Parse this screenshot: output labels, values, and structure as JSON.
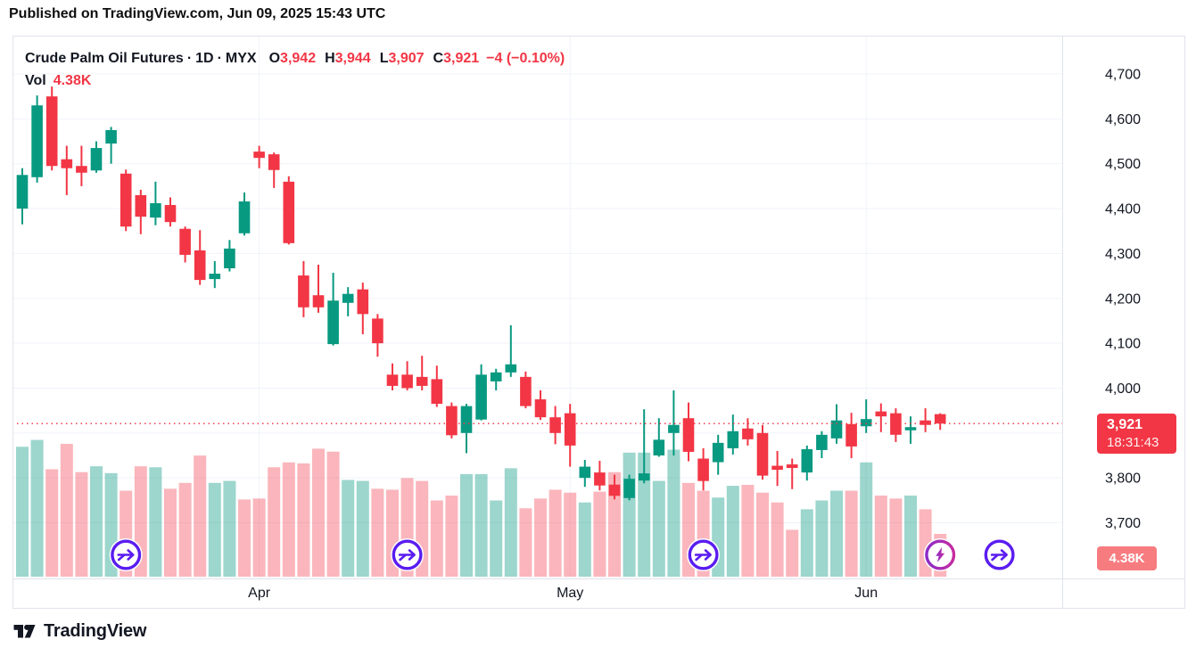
{
  "published_bar": "Published on TradingView.com, Jun 09, 2025 15:43 UTC",
  "legend": {
    "symbol": "Crude Palm Oil Futures",
    "separator": "·",
    "timeframe": "1D",
    "exchange": "MYX",
    "ohlc": {
      "o_label": "O",
      "o": "3,942",
      "h_label": "H",
      "h": "3,944",
      "l_label": "L",
      "l": "3,907",
      "c_label": "C",
      "c": "3,921",
      "change": "−4 (−0.10%)"
    },
    "vol_label": "Vol",
    "vol_value": "4.38K"
  },
  "price_axis": {
    "gridline_values": [
      4700,
      4600,
      4500,
      4400,
      4300,
      4200,
      4100,
      4000,
      3900,
      3800,
      3700
    ],
    "ticks": [
      {
        "value": 4700,
        "label": "4,700"
      },
      {
        "value": 4600,
        "label": "4,600"
      },
      {
        "value": 4500,
        "label": "4,500"
      },
      {
        "value": 4400,
        "label": "4,400"
      },
      {
        "value": 4300,
        "label": "4,300"
      },
      {
        "value": 4200,
        "label": "4,200"
      },
      {
        "value": 4100,
        "label": "4,100"
      },
      {
        "value": 4000,
        "label": "4,000"
      },
      {
        "value": 3800,
        "label": "3,800"
      },
      {
        "value": 3700,
        "label": "3,700"
      }
    ]
  },
  "time_axis": {
    "months": [
      {
        "label": "Apr",
        "index": 16
      },
      {
        "label": "May",
        "index": 37
      },
      {
        "label": "Jun",
        "index": 57
      }
    ]
  },
  "price_badge": {
    "price": "3,921",
    "countdown": "18:31:43",
    "value": 3921
  },
  "vol_badge": {
    "label": "4.38K"
  },
  "markers": [
    {
      "icon": "jump-arrow",
      "index": 7
    },
    {
      "icon": "jump-arrow",
      "index": 26
    },
    {
      "icon": "jump-arrow",
      "index": 46
    },
    {
      "icon": "flash",
      "index": 62
    },
    {
      "icon": "jump-arrow",
      "index": 66
    }
  ],
  "footer": {
    "brand": "TradingView"
  },
  "colors": {
    "up": "#089981",
    "down": "#F23645",
    "vol_up": "rgba(8,153,129,0.40)",
    "vol_down": "rgba(242,54,69,0.36)",
    "grid": "#F0F3FA",
    "frame": "#E0E3EB",
    "text": "#131722",
    "accent_red": "#F23645",
    "marker_purple": "#5A1CF0",
    "flash_purple": "#8B2BC9",
    "flash_magenta": "#C62CA0"
  },
  "chart_data": {
    "type": "candlestick",
    "title": "Crude Palm Oil Futures · 1D · MYX",
    "current_price": 3921,
    "ylim": [
      3580,
      4780
    ],
    "x_months": [
      "Apr",
      "May",
      "Jun"
    ],
    "volume_unit": "K",
    "columns": [
      "open",
      "high",
      "low",
      "close",
      "volume_k",
      "volume_up_color"
    ],
    "candles": [
      [
        4400,
        4490,
        4365,
        4475,
        13.3,
        1
      ],
      [
        4470,
        4652,
        4458,
        4630,
        14,
        1
      ],
      [
        4650,
        4672,
        4485,
        4495,
        11,
        0
      ],
      [
        4510,
        4540,
        4430,
        4490,
        13.6,
        0
      ],
      [
        4495,
        4540,
        4450,
        4480,
        10.7,
        0
      ],
      [
        4485,
        4550,
        4480,
        4535,
        11.3,
        1
      ],
      [
        4545,
        4582,
        4500,
        4575,
        10.6,
        1
      ],
      [
        4478,
        4487,
        4350,
        4360,
        8.8,
        0
      ],
      [
        4430,
        4442,
        4343,
        4382,
        11.3,
        0
      ],
      [
        4380,
        4460,
        4363,
        4412,
        11.2,
        1
      ],
      [
        4408,
        4425,
        4360,
        4370,
        9,
        0
      ],
      [
        4355,
        4360,
        4280,
        4297,
        9.6,
        0
      ],
      [
        4307,
        4352,
        4230,
        4241,
        12.4,
        0
      ],
      [
        4243,
        4283,
        4223,
        4255,
        9.6,
        1
      ],
      [
        4267,
        4330,
        4260,
        4311,
        9.8,
        1
      ],
      [
        4345,
        4436,
        4340,
        4416,
        7.9,
        0
      ],
      [
        4527,
        4540,
        4490,
        4513,
        8,
        0
      ],
      [
        4521,
        4525,
        4446,
        4486,
        11.2,
        0
      ],
      [
        4460,
        4472,
        4320,
        4323,
        11.7,
        0
      ],
      [
        4251,
        4283,
        4158,
        4180,
        11.6,
        0
      ],
      [
        4207,
        4275,
        4168,
        4180,
        13.1,
        0
      ],
      [
        4098,
        4257,
        4095,
        4195,
        12.8,
        0
      ],
      [
        4190,
        4225,
        4160,
        4210,
        9.9,
        1
      ],
      [
        4220,
        4235,
        4120,
        4165,
        9.8,
        1
      ],
      [
        4155,
        4165,
        4070,
        4100,
        9,
        0
      ],
      [
        4030,
        4055,
        3995,
        4005,
        8.9,
        0
      ],
      [
        4030,
        4060,
        3995,
        4000,
        10.1,
        0
      ],
      [
        4025,
        4072,
        3995,
        4005,
        9.8,
        0
      ],
      [
        4020,
        4050,
        3958,
        3965,
        7.8,
        0
      ],
      [
        3960,
        3968,
        3888,
        3895,
        8.3,
        0
      ],
      [
        3900,
        3965,
        3855,
        3960,
        10.5,
        1
      ],
      [
        3930,
        4053,
        3928,
        4030,
        10.5,
        1
      ],
      [
        4015,
        4043,
        3995,
        4035,
        7.8,
        1
      ],
      [
        4035,
        4140,
        4025,
        4053,
        11.1,
        1
      ],
      [
        4025,
        4037,
        3955,
        3960,
        7,
        0
      ],
      [
        3975,
        3995,
        3929,
        3935,
        8,
        0
      ],
      [
        3935,
        3960,
        3875,
        3900,
        8.9,
        0
      ],
      [
        3944,
        3965,
        3825,
        3872,
        8.6,
        0
      ],
      [
        3800,
        3840,
        3780,
        3825,
        7.6,
        1
      ],
      [
        3812,
        3838,
        3772,
        3783,
        8.7,
        0
      ],
      [
        3785,
        3807,
        3752,
        3760,
        10.7,
        0
      ],
      [
        3755,
        3807,
        3750,
        3798,
        12.7,
        1
      ],
      [
        3794,
        3953,
        3788,
        3810,
        12.7,
        1
      ],
      [
        3850,
        3933,
        3847,
        3885,
        9.8,
        1
      ],
      [
        3900,
        3995,
        3850,
        3918,
        13,
        1
      ],
      [
        3933,
        3968,
        3837,
        3858,
        9.6,
        0
      ],
      [
        3843,
        3866,
        3772,
        3793,
        8.8,
        0
      ],
      [
        3835,
        3896,
        3807,
        3878,
        8.1,
        1
      ],
      [
        3866,
        3941,
        3852,
        3904,
        9.3,
        1
      ],
      [
        3910,
        3933,
        3872,
        3886,
        9.4,
        0
      ],
      [
        3900,
        3918,
        3796,
        3805,
        8.6,
        0
      ],
      [
        3827,
        3860,
        3782,
        3818,
        7.6,
        0
      ],
      [
        3830,
        3843,
        3775,
        3822,
        4.8,
        0
      ],
      [
        3812,
        3872,
        3794,
        3864,
        6.9,
        1
      ],
      [
        3862,
        3904,
        3844,
        3896,
        7.8,
        1
      ],
      [
        3888,
        3964,
        3876,
        3928,
        8.8,
        1
      ],
      [
        3920,
        3945,
        3844,
        3870,
        8.8,
        0
      ],
      [
        3915,
        3975,
        3900,
        3931,
        11.7,
        1
      ],
      [
        3948,
        3966,
        3902,
        3937,
        8.3,
        0
      ],
      [
        3944,
        3955,
        3880,
        3896,
        8,
        0
      ],
      [
        3906,
        3937,
        3876,
        3913,
        8.3,
        1
      ],
      [
        3928,
        3955,
        3902,
        3918,
        6.9,
        0
      ],
      [
        3942,
        3944,
        3907,
        3921,
        4.38,
        0
      ]
    ]
  }
}
